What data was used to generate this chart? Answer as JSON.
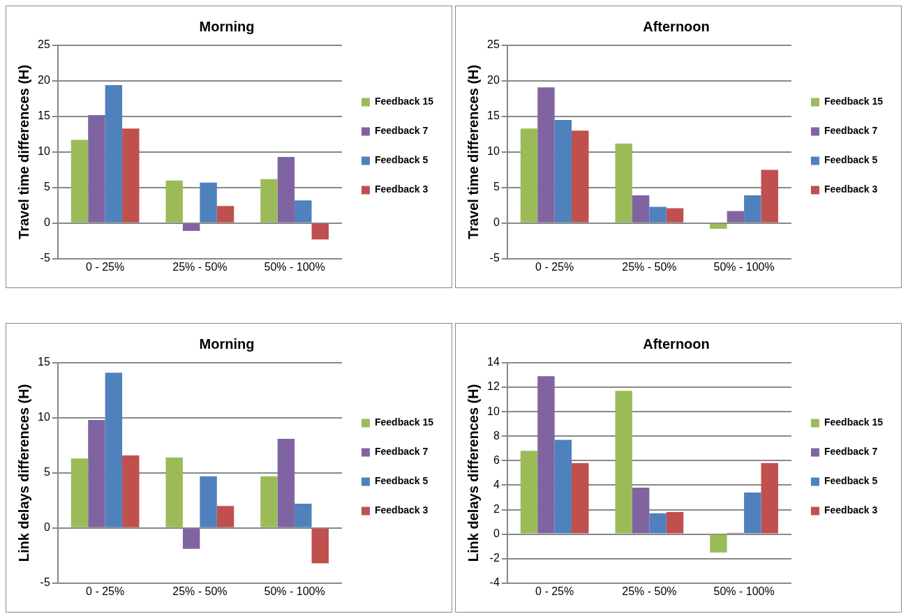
{
  "chart_data": [
    {
      "type": "bar",
      "title": "Morning",
      "ylabel": "Travel time differences (H)",
      "categories": [
        "0 - 25%",
        "25% - 50%",
        "50% - 100%"
      ],
      "ylim": [
        -5,
        25
      ],
      "yticks": [
        -5,
        0,
        5,
        10,
        15,
        20,
        25
      ],
      "grid": "y",
      "legend": "right",
      "series": [
        {
          "name": "Feedback 15",
          "color": "#9bbb59",
          "values": [
            11.7,
            6.0,
            6.2
          ]
        },
        {
          "name": "Feedback 7",
          "color": "#8064a2",
          "values": [
            15.2,
            -1.1,
            9.3
          ]
        },
        {
          "name": "Feedback 5",
          "color": "#4f81bd",
          "values": [
            19.4,
            5.7,
            3.2
          ]
        },
        {
          "name": "Feedback 3",
          "color": "#c0504d",
          "values": [
            13.3,
            2.4,
            -2.3
          ]
        }
      ]
    },
    {
      "type": "bar",
      "title": "Afternoon",
      "ylabel": "Travel time differences (H)",
      "categories": [
        "0 - 25%",
        "25% - 50%",
        "50% - 100%"
      ],
      "ylim": [
        -5,
        25
      ],
      "yticks": [
        -5,
        0,
        5,
        10,
        15,
        20,
        25
      ],
      "grid": "y",
      "legend": "right",
      "series": [
        {
          "name": "Feedback 15",
          "color": "#9bbb59",
          "values": [
            13.3,
            11.2,
            -0.8
          ]
        },
        {
          "name": "Feedback 7",
          "color": "#8064a2",
          "values": [
            19.1,
            3.9,
            1.7
          ]
        },
        {
          "name": "Feedback 5",
          "color": "#4f81bd",
          "values": [
            14.5,
            2.3,
            3.9
          ]
        },
        {
          "name": "Feedback 3",
          "color": "#c0504d",
          "values": [
            13.0,
            2.1,
            7.5
          ]
        }
      ]
    },
    {
      "type": "bar",
      "title": "Morning",
      "ylabel": "Link delays differences (H)",
      "categories": [
        "0 - 25%",
        "25% - 50%",
        "50% - 100%"
      ],
      "ylim": [
        -5,
        15
      ],
      "yticks": [
        -5,
        0,
        5,
        10,
        15
      ],
      "grid": "y",
      "legend": "right",
      "series": [
        {
          "name": "Feedback 15",
          "color": "#9bbb59",
          "values": [
            6.3,
            6.4,
            4.7
          ]
        },
        {
          "name": "Feedback 7",
          "color": "#8064a2",
          "values": [
            9.8,
            -1.9,
            8.1
          ]
        },
        {
          "name": "Feedback 5",
          "color": "#4f81bd",
          "values": [
            14.1,
            4.7,
            2.2
          ]
        },
        {
          "name": "Feedback 3",
          "color": "#c0504d",
          "values": [
            6.6,
            2.0,
            -3.2
          ]
        }
      ]
    },
    {
      "type": "bar",
      "title": "Afternoon",
      "ylabel": "Link delays differences (H)",
      "categories": [
        "0 - 25%",
        "25% - 50%",
        "50% - 100%"
      ],
      "ylim": [
        -4,
        14
      ],
      "yticks": [
        -4,
        -2,
        0,
        2,
        4,
        6,
        8,
        10,
        12,
        14
      ],
      "grid": "y",
      "legend": "right",
      "series": [
        {
          "name": "Feedback 15",
          "color": "#9bbb59",
          "values": [
            6.8,
            11.7,
            -1.5
          ]
        },
        {
          "name": "Feedback 7",
          "color": "#8064a2",
          "values": [
            12.9,
            3.8,
            0.1
          ]
        },
        {
          "name": "Feedback 5",
          "color": "#4f81bd",
          "values": [
            7.7,
            1.7,
            3.4
          ]
        },
        {
          "name": "Feedback 3",
          "color": "#c0504d",
          "values": [
            5.8,
            1.8,
            5.8
          ]
        }
      ]
    }
  ]
}
